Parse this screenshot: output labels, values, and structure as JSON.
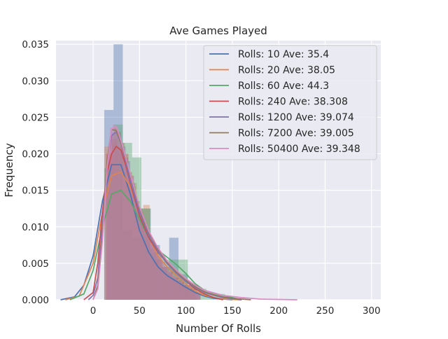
{
  "chart_data": {
    "type": "histogram_kde",
    "title": "Ave Games Played",
    "xlabel": "Number Of Rolls",
    "ylabel": "Frequency",
    "xlim": [
      -40,
      310
    ],
    "ylim": [
      0,
      0.0355
    ],
    "x_ticks": [
      {
        "value": 0,
        "label": "0"
      },
      {
        "value": 50,
        "label": "50"
      },
      {
        "value": 100,
        "label": "100"
      },
      {
        "value": 150,
        "label": "150"
      },
      {
        "value": 200,
        "label": "200"
      },
      {
        "value": 250,
        "label": "250"
      },
      {
        "value": 300,
        "label": "300"
      }
    ],
    "y_ticks": [
      {
        "value": 0.0,
        "label": "0.000"
      },
      {
        "value": 0.005,
        "label": "0.005"
      },
      {
        "value": 0.01,
        "label": "0.010"
      },
      {
        "value": 0.015,
        "label": "0.015"
      },
      {
        "value": 0.02,
        "label": "0.020"
      },
      {
        "value": 0.025,
        "label": "0.025"
      },
      {
        "value": 0.03,
        "label": "0.030"
      },
      {
        "value": 0.035,
        "label": "0.035"
      }
    ],
    "grid": true,
    "legend_position": "top-right",
    "background": "#eaeaf2",
    "series": [
      {
        "name": "Rolls: 10 Ave: 35.4",
        "color": "#4c72b0",
        "bin_width": 10,
        "hist": [
          [
            12,
            0.026
          ],
          [
            22,
            0.035
          ],
          [
            32,
            0.0095
          ],
          [
            42,
            0.0085
          ],
          [
            52,
            0.0125
          ],
          [
            62,
            0.0075
          ],
          [
            72,
            0.0045
          ],
          [
            82,
            0.0085
          ],
          [
            92,
            0.0035
          ],
          [
            102,
            0.002
          ]
        ],
        "kde_x": [
          -35,
          -20,
          -10,
          0,
          10,
          20,
          30,
          40,
          50,
          60,
          70,
          80,
          90,
          100,
          110,
          120,
          130,
          140,
          150
        ],
        "kde_y": [
          0,
          0.0004,
          0.002,
          0.006,
          0.0135,
          0.0185,
          0.0185,
          0.0145,
          0.0095,
          0.0065,
          0.0045,
          0.0033,
          0.0025,
          0.0017,
          0.001,
          0.0005,
          0.0002,
          0.0001,
          0
        ]
      },
      {
        "name": "Rolls: 20 Ave: 38.05",
        "color": "#dd8452",
        "bin_width": 7,
        "hist": [
          [
            12,
            0.021
          ],
          [
            19,
            0.0215
          ],
          [
            26,
            0.02
          ],
          [
            33,
            0.0175
          ],
          [
            40,
            0.016
          ],
          [
            47,
            0.0125
          ],
          [
            54,
            0.013
          ],
          [
            61,
            0.0055
          ],
          [
            68,
            0.006
          ],
          [
            75,
            0.004
          ],
          [
            82,
            0.004
          ],
          [
            89,
            0.003
          ],
          [
            96,
            0.002
          ],
          [
            103,
            0.001
          ]
        ],
        "kde_x": [
          -30,
          -15,
          0,
          10,
          20,
          30,
          40,
          50,
          60,
          70,
          80,
          90,
          100,
          110,
          120,
          130,
          140,
          160
        ],
        "kde_y": [
          0,
          0.0005,
          0.005,
          0.012,
          0.017,
          0.0175,
          0.0155,
          0.012,
          0.0085,
          0.006,
          0.0045,
          0.0033,
          0.0022,
          0.0012,
          0.0006,
          0.0003,
          0.0001,
          0
        ]
      },
      {
        "name": "Rolls: 60 Ave: 44.3",
        "color": "#55a868",
        "bin_width": 10,
        "hist": [
          [
            12,
            0.018
          ],
          [
            22,
            0.024
          ],
          [
            32,
            0.0215
          ],
          [
            42,
            0.0195
          ],
          [
            52,
            0.0125
          ],
          [
            62,
            0.0065
          ],
          [
            72,
            0.0055
          ],
          [
            82,
            0.0055
          ],
          [
            92,
            0.0055
          ],
          [
            102,
            0.002
          ],
          [
            112,
            0.0015
          ],
          [
            122,
            0.001
          ],
          [
            132,
            0.0008
          ]
        ],
        "kde_x": [
          -25,
          -10,
          0,
          10,
          20,
          30,
          40,
          50,
          60,
          70,
          80,
          90,
          100,
          110,
          120,
          130,
          140,
          150,
          160
        ],
        "kde_y": [
          0,
          0.0008,
          0.004,
          0.01,
          0.0145,
          0.015,
          0.0135,
          0.011,
          0.0085,
          0.0068,
          0.0058,
          0.0048,
          0.0036,
          0.0022,
          0.0013,
          0.0009,
          0.0006,
          0.0003,
          0
        ]
      },
      {
        "name": "Rolls: 240 Ave: 38.308",
        "color": "#c44e52",
        "bin_width": 6,
        "hist": [
          [
            14,
            0.02
          ],
          [
            20,
            0.022
          ],
          [
            26,
            0.021
          ],
          [
            32,
            0.02
          ],
          [
            38,
            0.017
          ],
          [
            44,
            0.013
          ],
          [
            50,
            0.011
          ],
          [
            56,
            0.009
          ],
          [
            62,
            0.007
          ],
          [
            68,
            0.0055
          ],
          [
            74,
            0.0045
          ],
          [
            80,
            0.0035
          ],
          [
            86,
            0.003
          ],
          [
            92,
            0.0025
          ],
          [
            98,
            0.002
          ],
          [
            104,
            0.0015
          ],
          [
            110,
            0.001
          ]
        ],
        "kde_x": [
          -10,
          0,
          5,
          10,
          15,
          20,
          25,
          30,
          35,
          40,
          50,
          60,
          70,
          80,
          90,
          100,
          110,
          120,
          130,
          140
        ],
        "kde_y": [
          0,
          0.001,
          0.005,
          0.012,
          0.0175,
          0.02,
          0.021,
          0.0205,
          0.0185,
          0.016,
          0.0115,
          0.0085,
          0.0065,
          0.005,
          0.0036,
          0.0025,
          0.0015,
          0.0008,
          0.0003,
          0
        ]
      },
      {
        "name": "Rolls: 1200 Ave: 39.074",
        "color": "#8172b3",
        "bin_width": 5,
        "hist": [
          [
            15,
            0.0195
          ],
          [
            20,
            0.023
          ],
          [
            25,
            0.0225
          ],
          [
            30,
            0.021
          ],
          [
            35,
            0.019
          ],
          [
            40,
            0.016
          ],
          [
            45,
            0.0135
          ],
          [
            50,
            0.011
          ],
          [
            55,
            0.0095
          ],
          [
            60,
            0.008
          ],
          [
            65,
            0.0065
          ],
          [
            70,
            0.0055
          ],
          [
            75,
            0.0045
          ],
          [
            80,
            0.0038
          ],
          [
            85,
            0.0031
          ],
          [
            90,
            0.0026
          ],
          [
            95,
            0.0021
          ],
          [
            100,
            0.0016
          ],
          [
            105,
            0.0012
          ],
          [
            110,
            0.0009
          ]
        ],
        "kde_x": [
          -5,
          0,
          5,
          10,
          15,
          20,
          25,
          30,
          35,
          40,
          50,
          60,
          70,
          80,
          90,
          100,
          110,
          120,
          130,
          140,
          160
        ],
        "kde_y": [
          0,
          0.0006,
          0.003,
          0.01,
          0.0185,
          0.0225,
          0.023,
          0.0215,
          0.019,
          0.0163,
          0.012,
          0.0088,
          0.0066,
          0.0049,
          0.0036,
          0.0025,
          0.0017,
          0.001,
          0.0006,
          0.0003,
          0
        ]
      },
      {
        "name": "Rolls: 7200 Ave: 39.005",
        "color": "#937860",
        "bin_width": 4,
        "hist": [
          [
            14,
            0.0185
          ],
          [
            18,
            0.0225
          ],
          [
            22,
            0.0235
          ],
          [
            26,
            0.023
          ],
          [
            30,
            0.0215
          ],
          [
            34,
            0.0195
          ],
          [
            38,
            0.0175
          ],
          [
            42,
            0.0155
          ],
          [
            46,
            0.0135
          ],
          [
            50,
            0.012
          ],
          [
            54,
            0.0105
          ],
          [
            58,
            0.009
          ],
          [
            62,
            0.008
          ],
          [
            66,
            0.007
          ],
          [
            70,
            0.006
          ],
          [
            74,
            0.0052
          ],
          [
            78,
            0.0045
          ],
          [
            82,
            0.0038
          ],
          [
            86,
            0.0032
          ],
          [
            90,
            0.0027
          ],
          [
            94,
            0.0023
          ],
          [
            98,
            0.0019
          ],
          [
            102,
            0.0016
          ],
          [
            106,
            0.0013
          ],
          [
            110,
            0.001
          ]
        ],
        "kde_x": [
          0,
          5,
          10,
          15,
          20,
          25,
          30,
          35,
          40,
          50,
          60,
          70,
          80,
          90,
          100,
          110,
          120,
          130,
          140,
          150,
          170
        ],
        "kde_y": [
          0,
          0.002,
          0.009,
          0.019,
          0.0233,
          0.0232,
          0.0215,
          0.0193,
          0.017,
          0.0125,
          0.0092,
          0.0069,
          0.0051,
          0.0038,
          0.0027,
          0.0018,
          0.0011,
          0.0007,
          0.0004,
          0.0002,
          0
        ]
      },
      {
        "name": "Rolls: 50400 Ave: 39.348",
        "color": "#da8bc3",
        "bin_width": 3,
        "hist": [
          [
            12,
            0.014
          ],
          [
            15,
            0.02
          ],
          [
            18,
            0.0235
          ],
          [
            21,
            0.024
          ],
          [
            24,
            0.0238
          ],
          [
            27,
            0.0225
          ],
          [
            30,
            0.021
          ],
          [
            33,
            0.0195
          ],
          [
            36,
            0.018
          ],
          [
            39,
            0.0165
          ],
          [
            42,
            0.015
          ],
          [
            45,
            0.0136
          ],
          [
            48,
            0.0123
          ],
          [
            51,
            0.0112
          ],
          [
            54,
            0.0102
          ],
          [
            57,
            0.0093
          ],
          [
            60,
            0.0084
          ],
          [
            63,
            0.0076
          ],
          [
            66,
            0.0069
          ],
          [
            69,
            0.0062
          ],
          [
            72,
            0.0056
          ],
          [
            75,
            0.005
          ],
          [
            78,
            0.0045
          ],
          [
            81,
            0.004
          ],
          [
            84,
            0.0036
          ],
          [
            87,
            0.0032
          ],
          [
            90,
            0.0028
          ],
          [
            93,
            0.0025
          ],
          [
            96,
            0.0022
          ],
          [
            99,
            0.0019
          ],
          [
            102,
            0.0017
          ],
          [
            105,
            0.0014
          ],
          [
            108,
            0.0012
          ],
          [
            111,
            0.001
          ]
        ],
        "kde_x": [
          0,
          5,
          10,
          15,
          20,
          25,
          30,
          35,
          40,
          50,
          60,
          70,
          80,
          90,
          100,
          110,
          120,
          140,
          160,
          180,
          200,
          220
        ],
        "kde_y": [
          0,
          0.0015,
          0.008,
          0.018,
          0.0235,
          0.0237,
          0.0218,
          0.0195,
          0.0172,
          0.0127,
          0.0094,
          0.0071,
          0.0053,
          0.004,
          0.0029,
          0.002,
          0.0013,
          0.0006,
          0.0003,
          0.0001,
          5e-05,
          0
        ]
      }
    ]
  }
}
